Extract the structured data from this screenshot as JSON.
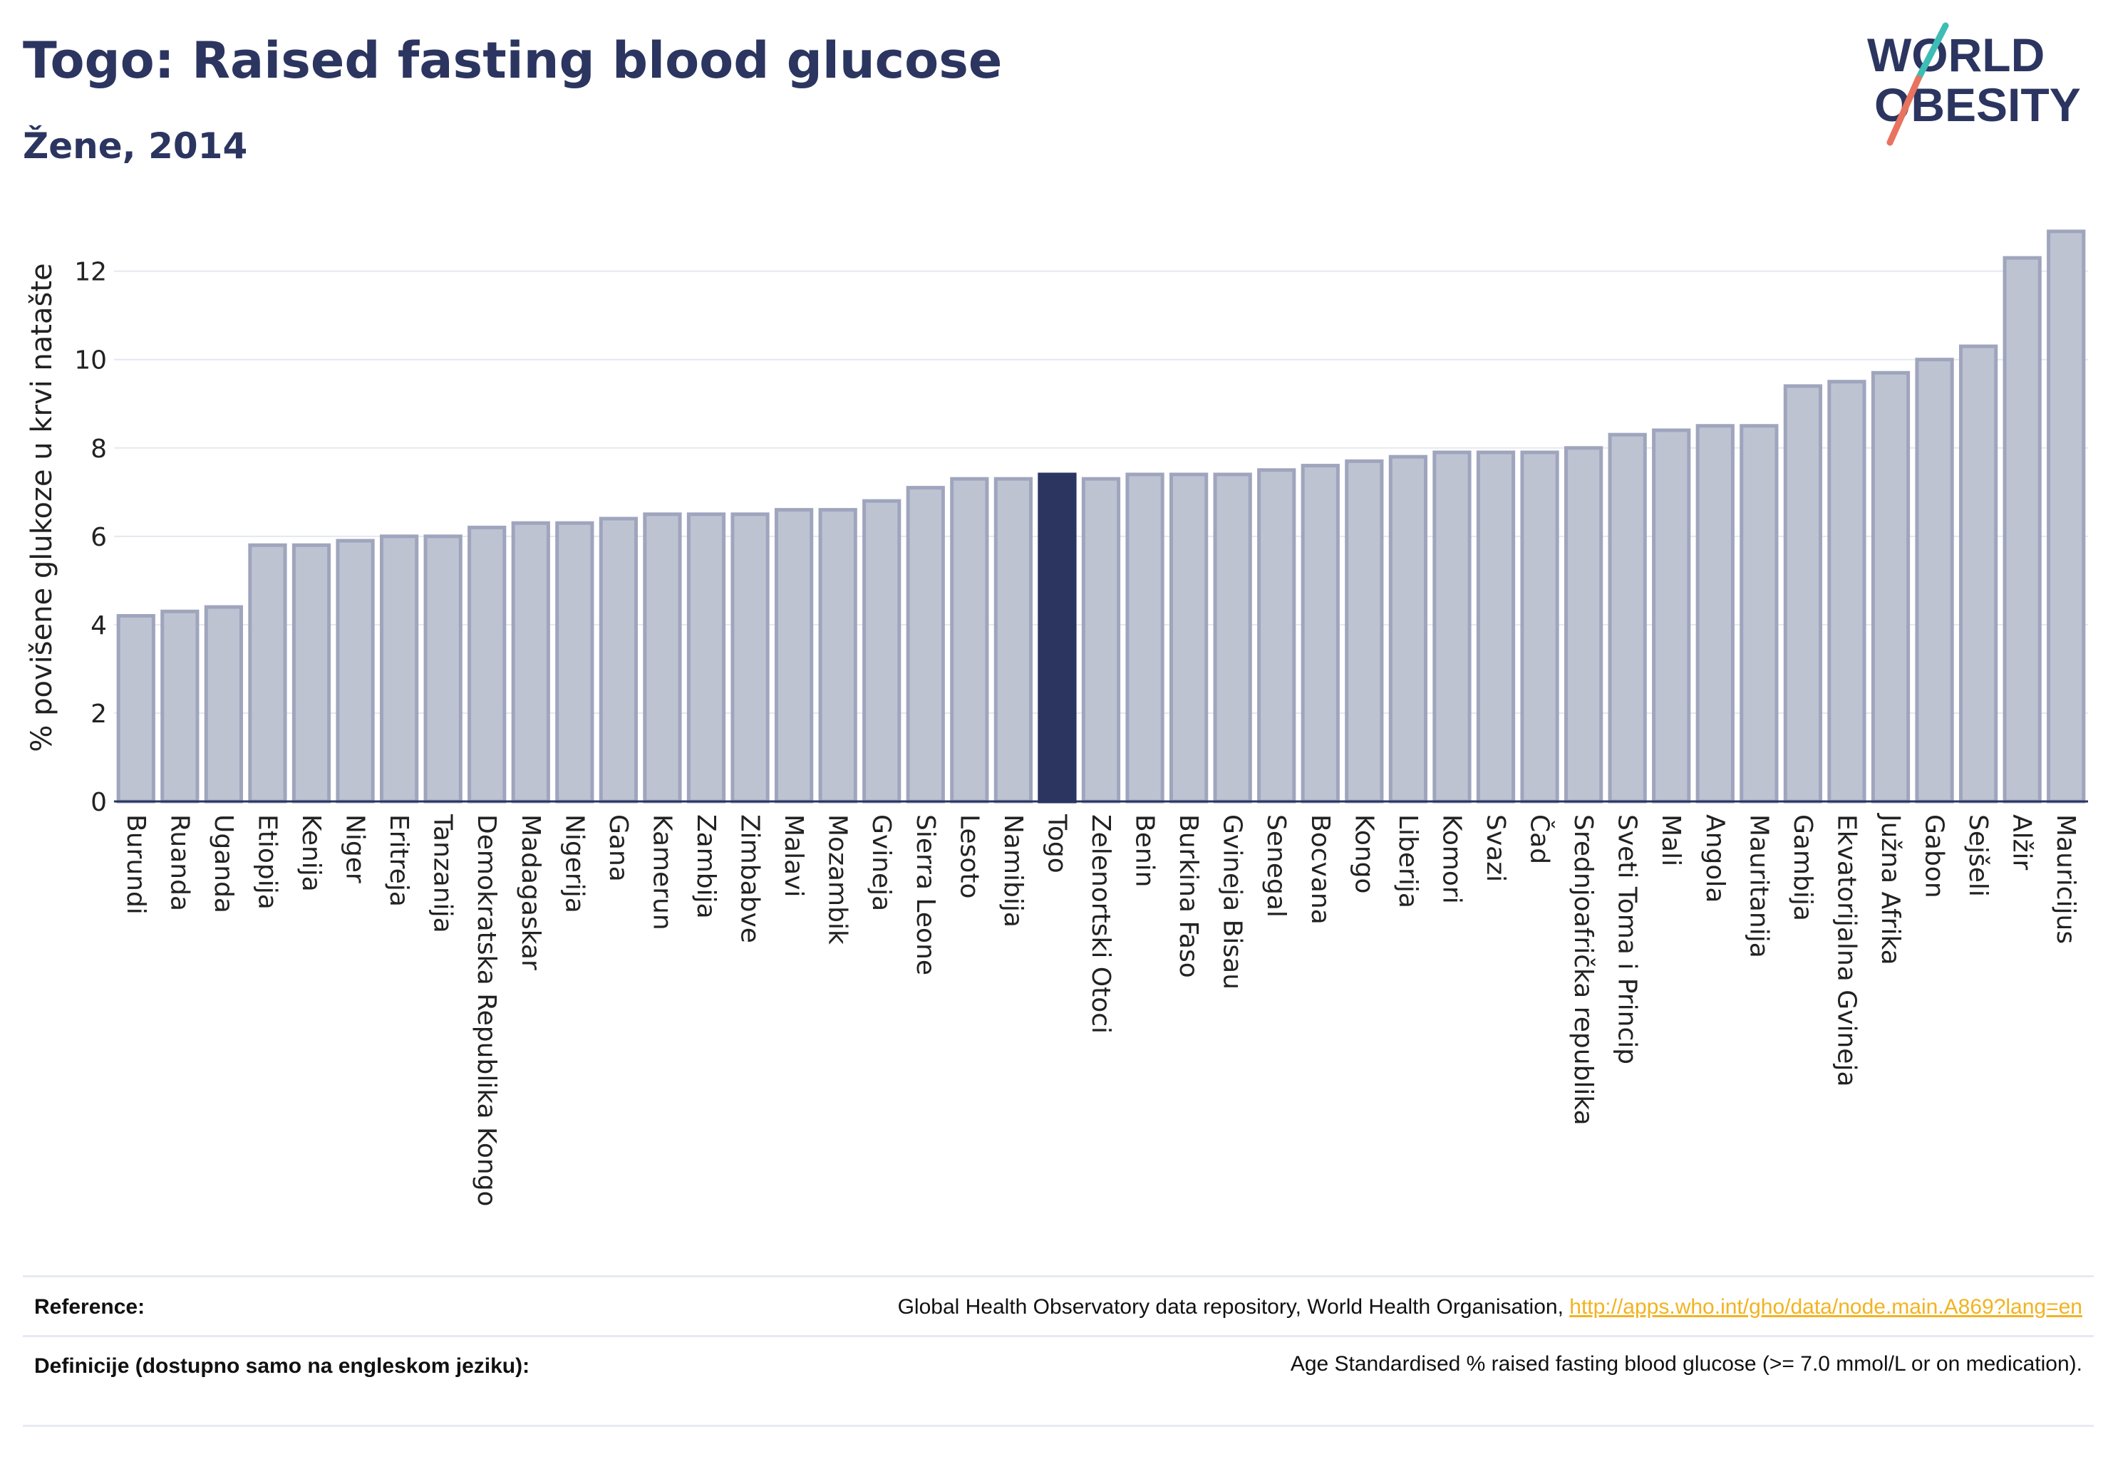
{
  "header": {
    "title": "Togo: Raised fasting blood glucose",
    "subtitle": "Žene, 2014",
    "logo_line1": "WORLD",
    "logo_line2": "OBESITY"
  },
  "colors": {
    "highlight": "#2b3560",
    "bar_fill": "#bec3d2",
    "bar_stroke": "#9fa5bd",
    "title": "#2b3560",
    "link": "#f2b320",
    "logo_teal": "#3dbdb5",
    "logo_coral": "#e8735f"
  },
  "chart_data": {
    "type": "bar",
    "title": "Togo: Raised fasting blood glucose",
    "subtitle": "Žene, 2014",
    "xlabel": "",
    "ylabel": "% povišene glukoze u krvi natašte",
    "ylim": [
      0,
      13.3
    ],
    "yticks": [
      0,
      2,
      4,
      6,
      8,
      10,
      12
    ],
    "grid": true,
    "highlight": "Togo",
    "categories": [
      "Burundi",
      "Ruanda",
      "Uganda",
      "Etiopija",
      "Kenija",
      "Niger",
      "Eritreja",
      "Tanzanija",
      "Demokratska Republika Kongo",
      "Madagaskar",
      "Nigerija",
      "Gana",
      "Kamerun",
      "Zambija",
      "Zimbabve",
      "Malavi",
      "Mozambik",
      "Gvineja",
      "Sierra Leone",
      "Lesoto",
      "Namibija",
      "Togo",
      "Zelenortski Otoci",
      "Benin",
      "Burkina Faso",
      "Gvineja Bisau",
      "Senegal",
      "Bocvana",
      "Kongo",
      "Liberija",
      "Komori",
      "Svazi",
      "Čad",
      "Srednjoafrička republika",
      "Sveti Toma i Princip",
      "Mali",
      "Angola",
      "Mauritanija",
      "Gambija",
      "Ekvatorijalna Gvineja",
      "Južna Afrika",
      "Gabon",
      "Sejšeli",
      "Alžir",
      "Mauricijus"
    ],
    "values": [
      4.2,
      4.3,
      4.4,
      5.8,
      5.8,
      5.9,
      6.0,
      6.0,
      6.2,
      6.3,
      6.3,
      6.4,
      6.5,
      6.5,
      6.5,
      6.6,
      6.6,
      6.8,
      7.1,
      7.3,
      7.3,
      7.4,
      7.3,
      7.4,
      7.4,
      7.4,
      7.5,
      7.6,
      7.7,
      7.8,
      7.9,
      7.9,
      7.9,
      8.0,
      8.3,
      8.4,
      8.5,
      8.5,
      9.4,
      9.5,
      9.7,
      10.0,
      10.3,
      12.3,
      12.9
    ]
  },
  "footer": {
    "reference_label": "Reference:",
    "reference_text": "Global Health Observatory data repository, World Health Organisation,",
    "reference_link": "http://apps.who.int/gho/data/node.main.A869?lang=en",
    "definition_label": "Definicije (dostupno samo na engleskom jeziku):",
    "definition_text": "Age Standardised % raised fasting blood glucose (>= 7.0 mmol/L or on medication)."
  }
}
